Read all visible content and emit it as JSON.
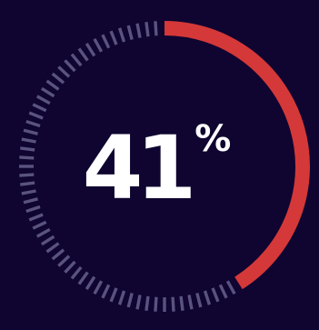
{
  "chart_data": {
    "type": "gauge",
    "value": 41,
    "max": 100,
    "label": "41",
    "unit": "%",
    "colors": {
      "background": "#0f0530",
      "filled": "#d53838",
      "remaining": "#5a5380",
      "text": "#ffffff"
    }
  }
}
